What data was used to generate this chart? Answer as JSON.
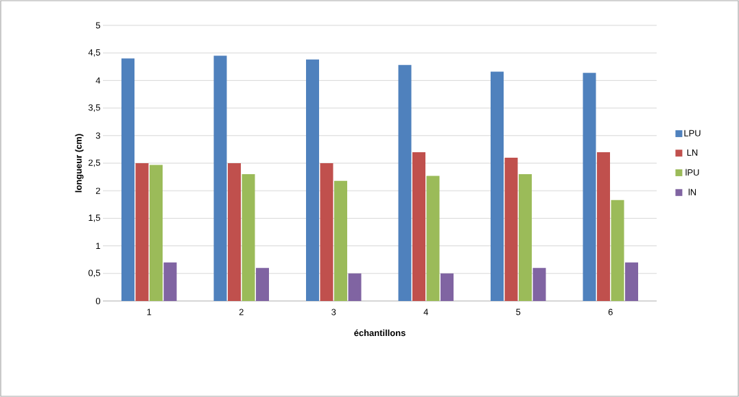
{
  "chart_data": {
    "type": "bar",
    "xlabel": "échantillons",
    "ylabel": "longueur (cm)",
    "categories": [
      "1",
      "2",
      "3",
      "4",
      "5",
      "6"
    ],
    "series": [
      {
        "name": "LPU",
        "color": "#4f81bd",
        "values": [
          4.4,
          4.45,
          4.38,
          4.28,
          4.16,
          4.14
        ]
      },
      {
        "name": "LN",
        "color": "#c0504d",
        "values": [
          2.5,
          2.5,
          2.5,
          2.7,
          2.6,
          2.7
        ]
      },
      {
        "name": "lPU",
        "color": "#9bbb59",
        "values": [
          2.47,
          2.3,
          2.18,
          2.27,
          2.3,
          1.83
        ]
      },
      {
        "name": "lN",
        "color": "#8064a2",
        "values": [
          0.7,
          0.6,
          0.5,
          0.5,
          0.6,
          0.7
        ]
      }
    ],
    "ylim": [
      0,
      5
    ],
    "yticks": [
      0,
      {
        "value": 0.5,
        "label": "0,5"
      },
      1,
      {
        "value": 1.5,
        "label": "1,5"
      },
      2,
      {
        "value": 2.5,
        "label": "2,5"
      },
      3,
      {
        "value": 3.5,
        "label": "3,5"
      },
      4,
      {
        "value": 4.5,
        "label": "4,5"
      },
      5
    ],
    "grid": "y",
    "legend": "right"
  }
}
